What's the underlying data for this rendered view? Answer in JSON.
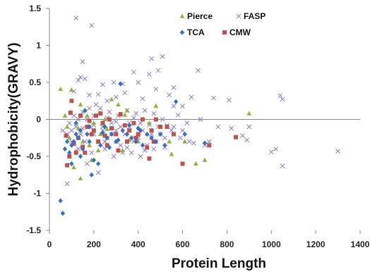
{
  "chart_data": {
    "type": "scatter",
    "title": "",
    "xlabel": "Protein Length",
    "ylabel": "Hydrophobicity(GRAVY)",
    "xlim": [
      0,
      1400
    ],
    "ylim": [
      -1.5,
      1.5
    ],
    "xticks": [
      0,
      200,
      400,
      600,
      800,
      1000,
      1200,
      1400
    ],
    "yticks": [
      1.5,
      1,
      0.5,
      0,
      -0.5,
      -1,
      -1.5
    ],
    "x_tick_labels": [
      "0",
      "200",
      "400",
      "600",
      "800",
      "1000",
      "1200",
      "1400"
    ],
    "y_tick_labels": [
      "1.5",
      "1",
      "0.5",
      "0",
      "-0.5",
      "-1",
      "-1.5"
    ],
    "grid": false,
    "legend_placement": "top-center",
    "series": [
      {
        "name": "Pierce",
        "marker": "triangle",
        "color": "#8db24a",
        "points": [
          [
            50,
            0.41
          ],
          [
            100,
            0.4
          ],
          [
            140,
            0.2
          ],
          [
            170,
            0.05
          ],
          [
            250,
            0.0
          ],
          [
            280,
            0.27
          ],
          [
            310,
            0.2
          ],
          [
            340,
            0.06
          ],
          [
            200,
            -0.05
          ],
          [
            230,
            -0.2
          ],
          [
            150,
            -0.3
          ],
          [
            120,
            -0.43
          ],
          [
            110,
            -0.65
          ],
          [
            140,
            -0.8
          ],
          [
            90,
            -0.25
          ],
          [
            180,
            -0.35
          ],
          [
            300,
            -0.3
          ],
          [
            330,
            -0.42
          ],
          [
            400,
            -0.3
          ],
          [
            440,
            -0.2
          ],
          [
            480,
            0.18
          ],
          [
            540,
            -0.3
          ],
          [
            550,
            -0.47
          ],
          [
            660,
            -0.6
          ],
          [
            700,
            -0.55
          ],
          [
            900,
            0.08
          ],
          [
            80,
            -0.1
          ],
          [
            130,
            -0.12
          ],
          [
            160,
            0.12
          ],
          [
            260,
            -0.13
          ],
          [
            220,
            -0.42
          ],
          [
            360,
            -0.28
          ],
          [
            500,
            -0.1
          ],
          [
            610,
            -0.3
          ],
          [
            70,
            0.05
          ],
          [
            190,
            -0.55
          ],
          [
            350,
            0.12
          ],
          [
            450,
            -0.05
          ]
        ]
      },
      {
        "name": "FASP",
        "marker": "cross",
        "color": "#8e7cc3",
        "points": [
          [
            120,
            1.37
          ],
          [
            190,
            1.27
          ],
          [
            510,
            0.85
          ],
          [
            460,
            0.82
          ],
          [
            150,
            0.78
          ],
          [
            670,
            0.66
          ],
          [
            490,
            0.66
          ],
          [
            380,
            0.64
          ],
          [
            450,
            0.61
          ],
          [
            140,
            0.57
          ],
          [
            160,
            0.55
          ],
          [
            130,
            0.53
          ],
          [
            240,
            0.47
          ],
          [
            290,
            0.5
          ],
          [
            330,
            0.48
          ],
          [
            400,
            0.5
          ],
          [
            480,
            0.41
          ],
          [
            560,
            0.43
          ],
          [
            110,
            0.38
          ],
          [
            180,
            0.33
          ],
          [
            220,
            0.34
          ],
          [
            260,
            0.25
          ],
          [
            300,
            0.3
          ],
          [
            340,
            0.36
          ],
          [
            420,
            0.28
          ],
          [
            540,
            0.33
          ],
          [
            600,
            0.18
          ],
          [
            640,
            0.3
          ],
          [
            740,
            0.29
          ],
          [
            810,
            0.26
          ],
          [
            1040,
            0.32
          ],
          [
            1050,
            0.27
          ],
          [
            150,
            0.1
          ],
          [
            200,
            0.05
          ],
          [
            230,
            0.15
          ],
          [
            270,
            0.1
          ],
          [
            310,
            0.05
          ],
          [
            350,
            0.12
          ],
          [
            380,
            0.02
          ],
          [
            430,
            0.12
          ],
          [
            470,
            0.08
          ],
          [
            510,
            0.0
          ],
          [
            580,
            0.06
          ],
          [
            620,
            -0.05
          ],
          [
            680,
            0.0
          ],
          [
            760,
            -0.1
          ],
          [
            820,
            -0.12
          ],
          [
            870,
            -0.22
          ],
          [
            890,
            -0.28
          ],
          [
            900,
            -0.1
          ],
          [
            1000,
            -0.44
          ],
          [
            1020,
            -0.4
          ],
          [
            1050,
            -0.63
          ],
          [
            1300,
            -0.43
          ],
          [
            80,
            -0.2
          ],
          [
            100,
            -0.3
          ],
          [
            120,
            -0.1
          ],
          [
            140,
            -0.2
          ],
          [
            160,
            -0.3
          ],
          [
            180,
            -0.1
          ],
          [
            200,
            -0.2
          ],
          [
            220,
            -0.3
          ],
          [
            240,
            -0.1
          ],
          [
            260,
            -0.25
          ],
          [
            280,
            -0.05
          ],
          [
            300,
            -0.15
          ],
          [
            320,
            -0.35
          ],
          [
            340,
            -0.2
          ],
          [
            360,
            -0.1
          ],
          [
            380,
            -0.3
          ],
          [
            400,
            -0.25
          ],
          [
            420,
            -0.15
          ],
          [
            440,
            -0.35
          ],
          [
            460,
            -0.2
          ],
          [
            480,
            -0.3
          ],
          [
            500,
            -0.2
          ],
          [
            520,
            -0.25
          ],
          [
            550,
            -0.15
          ],
          [
            590,
            -0.25
          ],
          [
            630,
            -0.3
          ],
          [
            650,
            -0.32
          ],
          [
            700,
            -0.35
          ],
          [
            720,
            -0.3
          ],
          [
            80,
            -0.87
          ],
          [
            170,
            -0.6
          ],
          [
            220,
            -0.72
          ],
          [
            130,
            -0.4
          ],
          [
            190,
            -0.45
          ],
          [
            250,
            -0.4
          ],
          [
            290,
            -0.5
          ],
          [
            330,
            -0.45
          ],
          [
            370,
            -0.45
          ],
          [
            410,
            -0.5
          ],
          [
            110,
            0.05
          ],
          [
            260,
            0.02
          ],
          [
            200,
            -0.08
          ],
          [
            300,
            -0.03
          ],
          [
            450,
            -0.07
          ],
          [
            560,
            -0.1
          ],
          [
            100,
            -0.15
          ],
          [
            150,
            -0.12
          ],
          [
            170,
            0.0
          ],
          [
            240,
            -0.15
          ],
          [
            280,
            -0.2
          ],
          [
            320,
            -0.1
          ],
          [
            360,
            -0.05
          ],
          [
            410,
            -0.05
          ],
          [
            490,
            -0.1
          ],
          [
            530,
            -0.08
          ],
          [
            600,
            -0.15
          ],
          [
            460,
            -0.25
          ],
          [
            390,
            0.08
          ],
          [
            210,
            0.2
          ],
          [
            560,
            0.18
          ],
          [
            60,
            -0.15
          ],
          [
            90,
            -0.05
          ],
          [
            130,
            0.0
          ],
          [
            180,
            0.15
          ],
          [
            250,
            -0.3
          ],
          [
            350,
            -0.38
          ],
          [
            430,
            -0.42
          ],
          [
            470,
            -0.4
          ],
          [
            520,
            -0.38
          ]
        ]
      },
      {
        "name": "TCA",
        "marker": "diamond",
        "color": "#3a6fbf",
        "points": [
          [
            50,
            -1.1
          ],
          [
            60,
            -1.27
          ],
          [
            70,
            -0.4
          ],
          [
            80,
            -0.3
          ],
          [
            90,
            -0.45
          ],
          [
            100,
            -0.35
          ],
          [
            110,
            -0.3
          ],
          [
            120,
            -0.2
          ],
          [
            130,
            -0.25
          ],
          [
            140,
            -0.15
          ],
          [
            150,
            -0.4
          ],
          [
            160,
            0.12
          ],
          [
            170,
            -0.2
          ],
          [
            180,
            -0.3
          ],
          [
            190,
            -0.75
          ],
          [
            200,
            -0.55
          ],
          [
            220,
            -0.6
          ],
          [
            230,
            -0.35
          ],
          [
            250,
            -0.1
          ],
          [
            260,
            -0.25
          ],
          [
            280,
            -0.2
          ],
          [
            300,
            -0.3
          ],
          [
            320,
            0.48
          ],
          [
            330,
            -0.15
          ],
          [
            350,
            -0.2
          ],
          [
            370,
            -0.25
          ],
          [
            390,
            -0.3
          ],
          [
            410,
            -0.15
          ],
          [
            420,
            -0.35
          ],
          [
            440,
            -0.2
          ],
          [
            460,
            -0.25
          ],
          [
            480,
            -0.3
          ],
          [
            500,
            -0.2
          ],
          [
            520,
            -0.35
          ],
          [
            570,
            0.24
          ],
          [
            610,
            -0.2
          ],
          [
            700,
            -0.32
          ],
          [
            120,
            -0.05
          ],
          [
            180,
            -0.1
          ],
          [
            240,
            -0.18
          ],
          [
            270,
            -0.38
          ],
          [
            310,
            -0.28
          ],
          [
            360,
            -0.08
          ],
          [
            400,
            -0.12
          ],
          [
            100,
            -0.6
          ],
          [
            140,
            -0.5
          ]
        ]
      },
      {
        "name": "CMW",
        "marker": "square",
        "color": "#c0504d",
        "points": [
          [
            100,
            0.25
          ],
          [
            95,
            0.09
          ],
          [
            90,
            -0.5
          ],
          [
            80,
            -0.62
          ],
          [
            110,
            -0.33
          ],
          [
            130,
            -0.25
          ],
          [
            150,
            -0.37
          ],
          [
            170,
            -0.1
          ],
          [
            180,
            -0.02
          ],
          [
            200,
            -0.15
          ],
          [
            210,
            0.05
          ],
          [
            230,
            0.08
          ],
          [
            240,
            -0.05
          ],
          [
            260,
            -0.35
          ],
          [
            280,
            -0.12
          ],
          [
            300,
            -0.2
          ],
          [
            320,
            0.07
          ],
          [
            340,
            -0.08
          ],
          [
            360,
            -0.15
          ],
          [
            380,
            -0.05
          ],
          [
            400,
            -0.2
          ],
          [
            420,
            0.0
          ],
          [
            440,
            -0.38
          ],
          [
            450,
            -0.53
          ],
          [
            460,
            -0.15
          ],
          [
            480,
            0.0
          ],
          [
            500,
            -0.1
          ],
          [
            530,
            -0.1
          ],
          [
            560,
            -0.2
          ],
          [
            600,
            -0.6
          ],
          [
            720,
            -0.35
          ],
          [
            840,
            -0.24
          ],
          [
            120,
            -0.45
          ],
          [
            160,
            -0.45
          ],
          [
            220,
            -0.3
          ],
          [
            270,
            0.0
          ],
          [
            310,
            -0.42
          ],
          [
            350,
            -0.3
          ],
          [
            390,
            -0.25
          ],
          [
            470,
            -0.3
          ],
          [
            75,
            -0.22
          ],
          [
            140,
            0.05
          ],
          [
            190,
            -0.2
          ],
          [
            250,
            -0.22
          ]
        ]
      }
    ]
  }
}
